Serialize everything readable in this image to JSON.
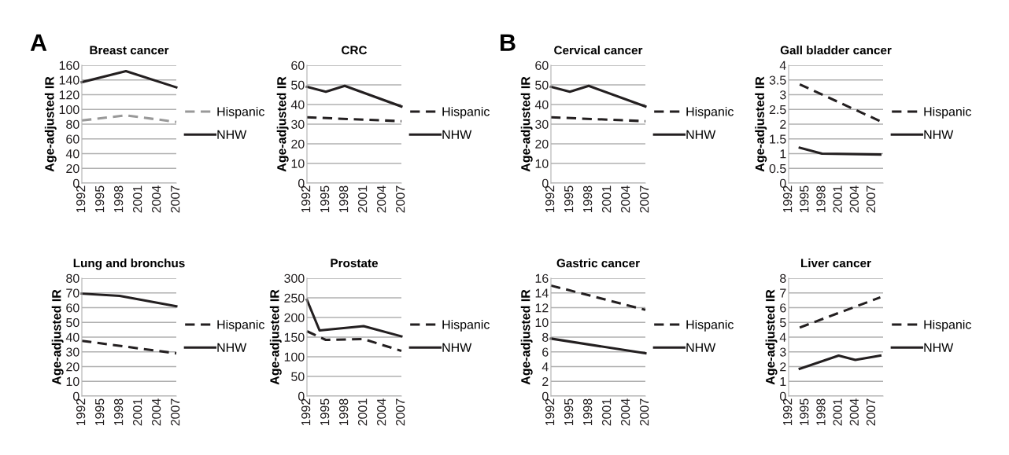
{
  "chart_data": [
    {
      "type": "line",
      "title": "Breast cancer",
      "ylabel": "Age-adjusted IR",
      "annotations": [
        "A"
      ],
      "xlim": [
        1992,
        2007
      ],
      "xticks": [
        1992,
        1995,
        1998,
        2001,
        2004,
        2007
      ],
      "ylim": [
        0,
        160
      ],
      "yticks": [
        0,
        20,
        40,
        60,
        80,
        100,
        120,
        140,
        160
      ],
      "grid": "y",
      "legend": "right",
      "marker": "none",
      "series": [
        {
          "name": "Hispanic",
          "color": "#999999",
          "line_style": "dashed",
          "x": [
            1992,
            1999,
            2007
          ],
          "values": [
            85,
            92,
            83
          ]
        },
        {
          "name": "NHW",
          "color": "#231f20",
          "line_style": "solid",
          "x": [
            1992,
            1999,
            2007
          ],
          "values": [
            137,
            152,
            130
          ]
        }
      ]
    },
    {
      "type": "line",
      "title": "CRC",
      "ylabel": "Age-adjusted IR",
      "xlim": [
        1992,
        2007
      ],
      "xticks": [
        1992,
        1995,
        1998,
        2001,
        2004,
        2007
      ],
      "ylim": [
        0,
        60
      ],
      "yticks": [
        0,
        10,
        20,
        30,
        40,
        50,
        60
      ],
      "grid": "y",
      "legend": "right",
      "marker": "none",
      "series": [
        {
          "name": "Hispanic",
          "color": "#231f20",
          "line_style": "dashed",
          "x": [
            1992,
            2007
          ],
          "values": [
            33.5,
            31.5
          ]
        },
        {
          "name": "NHW",
          "color": "#231f20",
          "line_style": "solid",
          "x": [
            1992,
            1995,
            1998,
            2007
          ],
          "values": [
            49,
            46.5,
            49.5,
            39
          ]
        }
      ]
    },
    {
      "type": "line",
      "title": "Cervical cancer",
      "ylabel": "Age-adjusted IR",
      "annotations": [
        "B"
      ],
      "xlim": [
        1992,
        2007
      ],
      "xticks": [
        1992,
        1995,
        1998,
        2001,
        2004,
        2007
      ],
      "ylim": [
        0,
        60
      ],
      "yticks": [
        0,
        10,
        20,
        30,
        40,
        50,
        60
      ],
      "grid": "y",
      "legend": "right",
      "marker": "none",
      "series": [
        {
          "name": "Hispanic",
          "color": "#231f20",
          "line_style": "dashed",
          "x": [
            1992,
            2007
          ],
          "values": [
            33.5,
            31.5
          ]
        },
        {
          "name": "NHW",
          "color": "#231f20",
          "line_style": "solid",
          "x": [
            1992,
            1995,
            1998,
            2007
          ],
          "values": [
            49,
            46.5,
            49.5,
            39
          ]
        }
      ]
    },
    {
      "type": "line",
      "title": "Gall bladder cancer",
      "ylabel": "Age-adjusted IR",
      "xlim": [
        1992,
        2009
      ],
      "xticks": [
        1992,
        1995,
        1998,
        2001,
        2004,
        2007
      ],
      "ylim": [
        0,
        4
      ],
      "yticks": [
        0,
        0.5,
        1,
        1.5,
        2,
        2.5,
        3,
        3.5,
        4
      ],
      "grid": "y",
      "legend": "right",
      "marker": "none",
      "series": [
        {
          "name": "Hispanic",
          "color": "#231f20",
          "line_style": "dashed",
          "x": [
            1994,
            2008.5
          ],
          "values": [
            3.35,
            2.1
          ]
        },
        {
          "name": "NHW",
          "color": "#231f20",
          "line_style": "solid",
          "x": [
            1994,
            1998,
            2008.5
          ],
          "values": [
            1.2,
            1.0,
            0.97
          ]
        }
      ]
    },
    {
      "type": "line",
      "title": "Lung and bronchus",
      "ylabel": "Age-adjusted IR",
      "xlim": [
        1992,
        2007
      ],
      "xticks": [
        1992,
        1995,
        1998,
        2001,
        2004,
        2007
      ],
      "ylim": [
        0,
        80
      ],
      "yticks": [
        0,
        10,
        20,
        30,
        40,
        50,
        60,
        70,
        80
      ],
      "grid": "y",
      "legend": "right",
      "marker": "none",
      "series": [
        {
          "name": "Hispanic",
          "color": "#231f20",
          "line_style": "dashed",
          "x": [
            1992,
            2007
          ],
          "values": [
            37.5,
            29
          ]
        },
        {
          "name": "NHW",
          "color": "#231f20",
          "line_style": "solid",
          "x": [
            1992,
            1998,
            2007
          ],
          "values": [
            69.5,
            68,
            61
          ]
        }
      ]
    },
    {
      "type": "line",
      "title": "Prostate",
      "ylabel": "Age-adjusted IR",
      "xlim": [
        1992,
        2007
      ],
      "xticks": [
        1992,
        1995,
        1998,
        2001,
        2004,
        2007
      ],
      "ylim": [
        0,
        300
      ],
      "yticks": [
        0,
        50,
        100,
        150,
        200,
        250,
        300
      ],
      "grid": "y",
      "legend": "right",
      "marker": "none",
      "series": [
        {
          "name": "Hispanic",
          "color": "#231f20",
          "line_style": "dashed",
          "x": [
            1992,
            1995,
            2001,
            2007
          ],
          "values": [
            165,
            143,
            145,
            115
          ]
        },
        {
          "name": "NHW",
          "color": "#231f20",
          "line_style": "solid",
          "x": [
            1992,
            1994,
            2001,
            2007
          ],
          "values": [
            245,
            167,
            178,
            152
          ]
        }
      ]
    },
    {
      "type": "line",
      "title": "Gastric cancer",
      "ylabel": "Age-adjusted IR",
      "xlim": [
        1992,
        2007
      ],
      "xticks": [
        1992,
        1995,
        1998,
        2001,
        2004,
        2007
      ],
      "ylim": [
        0,
        16
      ],
      "yticks": [
        0,
        2,
        4,
        6,
        8,
        10,
        12,
        14,
        16
      ],
      "grid": "y",
      "legend": "right",
      "marker": "none",
      "series": [
        {
          "name": "Hispanic",
          "color": "#231f20",
          "line_style": "dashed",
          "x": [
            1992,
            2007
          ],
          "values": [
            15,
            11.7
          ]
        },
        {
          "name": "NHW",
          "color": "#231f20",
          "line_style": "solid",
          "x": [
            1992,
            2007
          ],
          "values": [
            7.8,
            5.8
          ]
        }
      ]
    },
    {
      "type": "line",
      "title": "Liver cancer",
      "ylabel": "Age-adjusted IR",
      "xlim": [
        1992,
        2009
      ],
      "xticks": [
        1992,
        1995,
        1998,
        2001,
        2004,
        2007
      ],
      "ylim": [
        0,
        8
      ],
      "yticks": [
        0,
        1,
        2,
        3,
        4,
        5,
        6,
        7,
        8
      ],
      "grid": "y",
      "legend": "right",
      "marker": "none",
      "series": [
        {
          "name": "Hispanic",
          "color": "#231f20",
          "line_style": "dashed",
          "x": [
            1994,
            2008.5
          ],
          "values": [
            4.65,
            6.7
          ]
        },
        {
          "name": "NHW",
          "color": "#231f20",
          "line_style": "solid",
          "x": [
            1994,
            2001,
            2004,
            2008.5
          ],
          "values": [
            1.85,
            2.75,
            2.45,
            2.75
          ]
        }
      ]
    }
  ]
}
